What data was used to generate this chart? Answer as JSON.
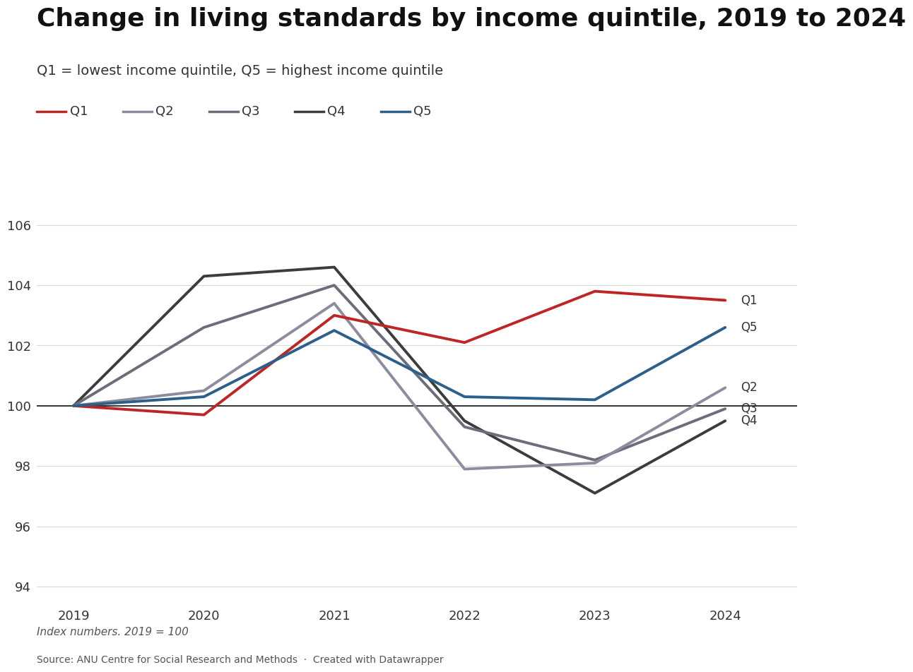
{
  "title": "Change in living standards by income quintile, 2019 to 2024",
  "subtitle": "Q1 = lowest income quintile, Q5 = highest income quintile",
  "footnote": "Index numbers. 2019 = 100",
  "source": "Source: ANU Centre for Social Research and Methods  ·  Created with Datawrapper",
  "x": [
    2019,
    2020,
    2021,
    2022,
    2023,
    2024
  ],
  "series": {
    "Q1": {
      "values": [
        100,
        99.7,
        103.0,
        102.1,
        103.8,
        103.5
      ],
      "color": "#be2625",
      "linewidth": 2.8,
      "zorder": 5
    },
    "Q2": {
      "values": [
        100,
        100.5,
        103.4,
        97.9,
        98.1,
        100.6
      ],
      "color": "#8c8c9e",
      "linewidth": 2.8,
      "zorder": 4
    },
    "Q3": {
      "values": [
        100,
        102.6,
        104.0,
        99.3,
        98.2,
        99.9
      ],
      "color": "#6d6d7a",
      "linewidth": 2.8,
      "zorder": 3
    },
    "Q4": {
      "values": [
        100,
        104.3,
        104.6,
        99.5,
        97.1,
        99.5
      ],
      "color": "#3c3c3c",
      "linewidth": 2.8,
      "zorder": 2
    },
    "Q5": {
      "values": [
        100,
        100.3,
        102.5,
        100.3,
        100.2,
        102.6
      ],
      "color": "#2c5f8a",
      "linewidth": 2.8,
      "zorder": 6
    }
  },
  "ylim": [
    93.5,
    106.5
  ],
  "yticks": [
    94,
    96,
    98,
    100,
    102,
    104,
    106
  ],
  "xticks": [
    2019,
    2020,
    2021,
    2022,
    2023,
    2024
  ],
  "title_fontsize": 26,
  "subtitle_fontsize": 14,
  "legend_fontsize": 13,
  "annotation_fontsize": 12,
  "tick_fontsize": 13,
  "footnote_fontsize": 11,
  "source_fontsize": 10,
  "background_color": "#ffffff",
  "grid_color": "#d9d9d9",
  "text_color": "#333333",
  "annotation_color": "#333333"
}
